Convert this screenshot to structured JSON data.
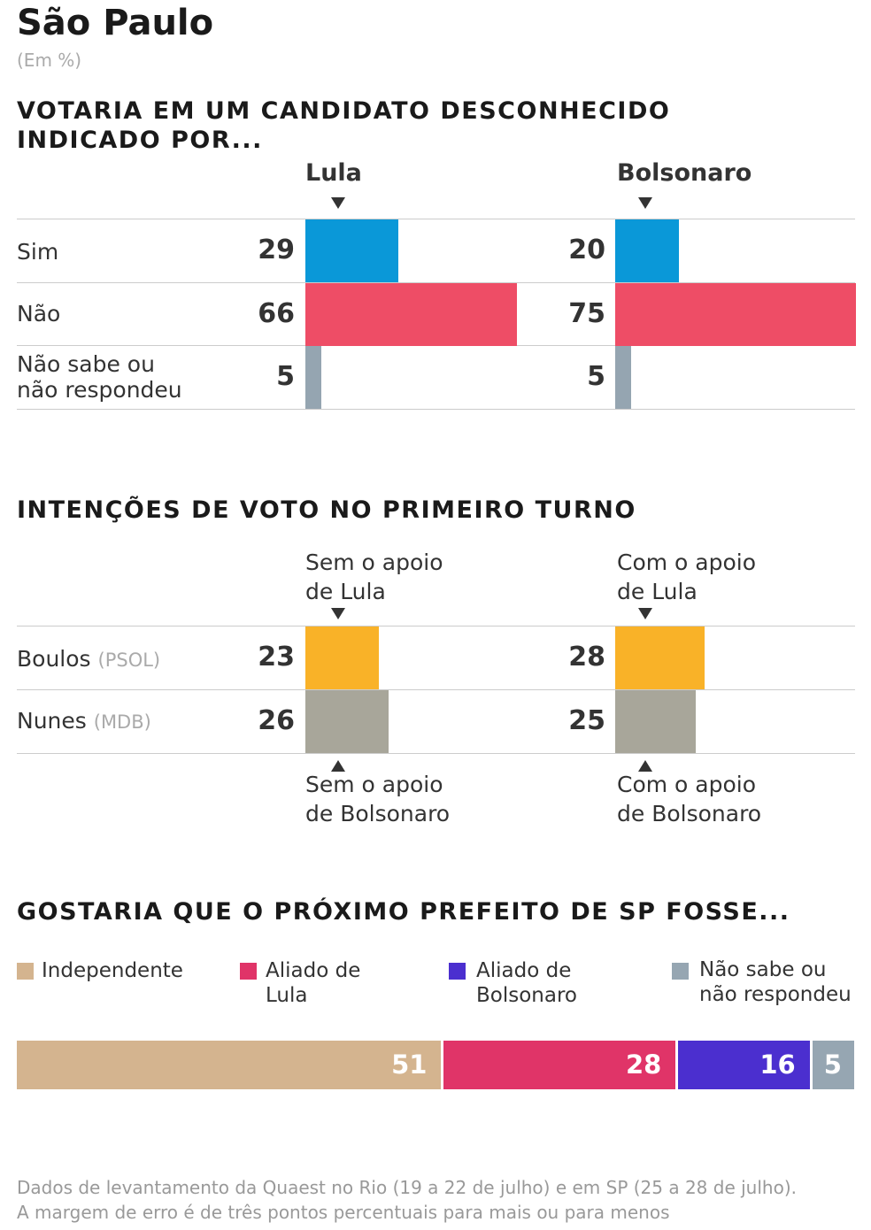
{
  "header": {
    "title": "São Paulo",
    "unit": "(Em %)"
  },
  "section1": {
    "title_line1": "VOTARIA EM UM CANDIDATO DESCONHECIDO",
    "title_line2": "INDICADO POR...",
    "columns": [
      "Lula",
      "Bolsonaro"
    ],
    "rows": [
      {
        "label_line1": "Sim",
        "label_line2": ""
      },
      {
        "label_line1": "Não",
        "label_line2": ""
      },
      {
        "label_line1": "Não sabe ou",
        "label_line2": "não respondeu"
      }
    ]
  },
  "section2": {
    "title": "INTENÇÕES DE VOTO NO PRIMEIRO TURNO",
    "col_top": [
      {
        "line1": "Sem o apoio",
        "line2": "de Lula"
      },
      {
        "line1": "Com o apoio",
        "line2": "de Lula"
      }
    ],
    "col_bottom": [
      {
        "line1": "Sem o apoio",
        "line2": "de Bolsonaro"
      },
      {
        "line1": "Com o apoio",
        "line2": "de Bolsonaro"
      }
    ],
    "rows": [
      {
        "name": "Boulos",
        "party": "(PSOL)"
      },
      {
        "name": "Nunes",
        "party": "(MDB)"
      }
    ]
  },
  "section3": {
    "title": "GOSTARIA QUE O PRÓXIMO PREFEITO DE SP FOSSE...",
    "legend": [
      {
        "line1": "Independente",
        "line2": "",
        "color": "#d4b48f"
      },
      {
        "line1": "Aliado de",
        "line2": "Lula",
        "color": "#e03468"
      },
      {
        "line1": "Aliado de",
        "line2": "Bolsonaro",
        "color": "#4b2fcf"
      },
      {
        "line1": "Não sabe ou",
        "line2": "não respondeu",
        "color": "#96a6b2"
      }
    ]
  },
  "chart_data": [
    {
      "type": "bar",
      "title": "VOTARIA EM UM CANDIDATO DESCONHECIDO INDICADO POR...",
      "categories": [
        "Sim",
        "Não",
        "Não sabe ou não respondeu"
      ],
      "series": [
        {
          "name": "Lula",
          "values": [
            29,
            66,
            5
          ]
        },
        {
          "name": "Bolsonaro",
          "values": [
            20,
            75,
            5
          ]
        }
      ],
      "colors": [
        "#0a98d8",
        "#ee4d66",
        "#95a5b1"
      ],
      "xlim": [
        0,
        75
      ]
    },
    {
      "type": "bar",
      "title": "INTENÇÕES DE VOTO NO PRIMEIRO TURNO",
      "categories": [
        "Boulos (PSOL)",
        "Nunes (MDB)"
      ],
      "series": [
        {
          "name": "Sem o apoio",
          "values": [
            23,
            26
          ]
        },
        {
          "name": "Com o apoio",
          "values": [
            28,
            25
          ]
        }
      ],
      "colors": [
        "#f9b228",
        "#a8a69a"
      ],
      "xlim": [
        0,
        75
      ]
    },
    {
      "type": "bar",
      "title": "GOSTARIA QUE O PRÓXIMO PREFEITO DE SP FOSSE...",
      "categories": [
        "Independente",
        "Aliado de Lula",
        "Aliado de Bolsonaro",
        "Não sabe ou não respondeu"
      ],
      "values": [
        51,
        28,
        16,
        5
      ],
      "colors": [
        "#d4b48f",
        "#e03468",
        "#4b2fcf",
        "#96a6b2"
      ],
      "stacked": true
    }
  ],
  "footer": {
    "line1": "Dados de levantamento da Quaest no Rio (19 a 22 de julho) e em SP (25 a 28 de julho).",
    "line2": "A margem de erro é de três pontos percentuais para mais ou para menos"
  }
}
